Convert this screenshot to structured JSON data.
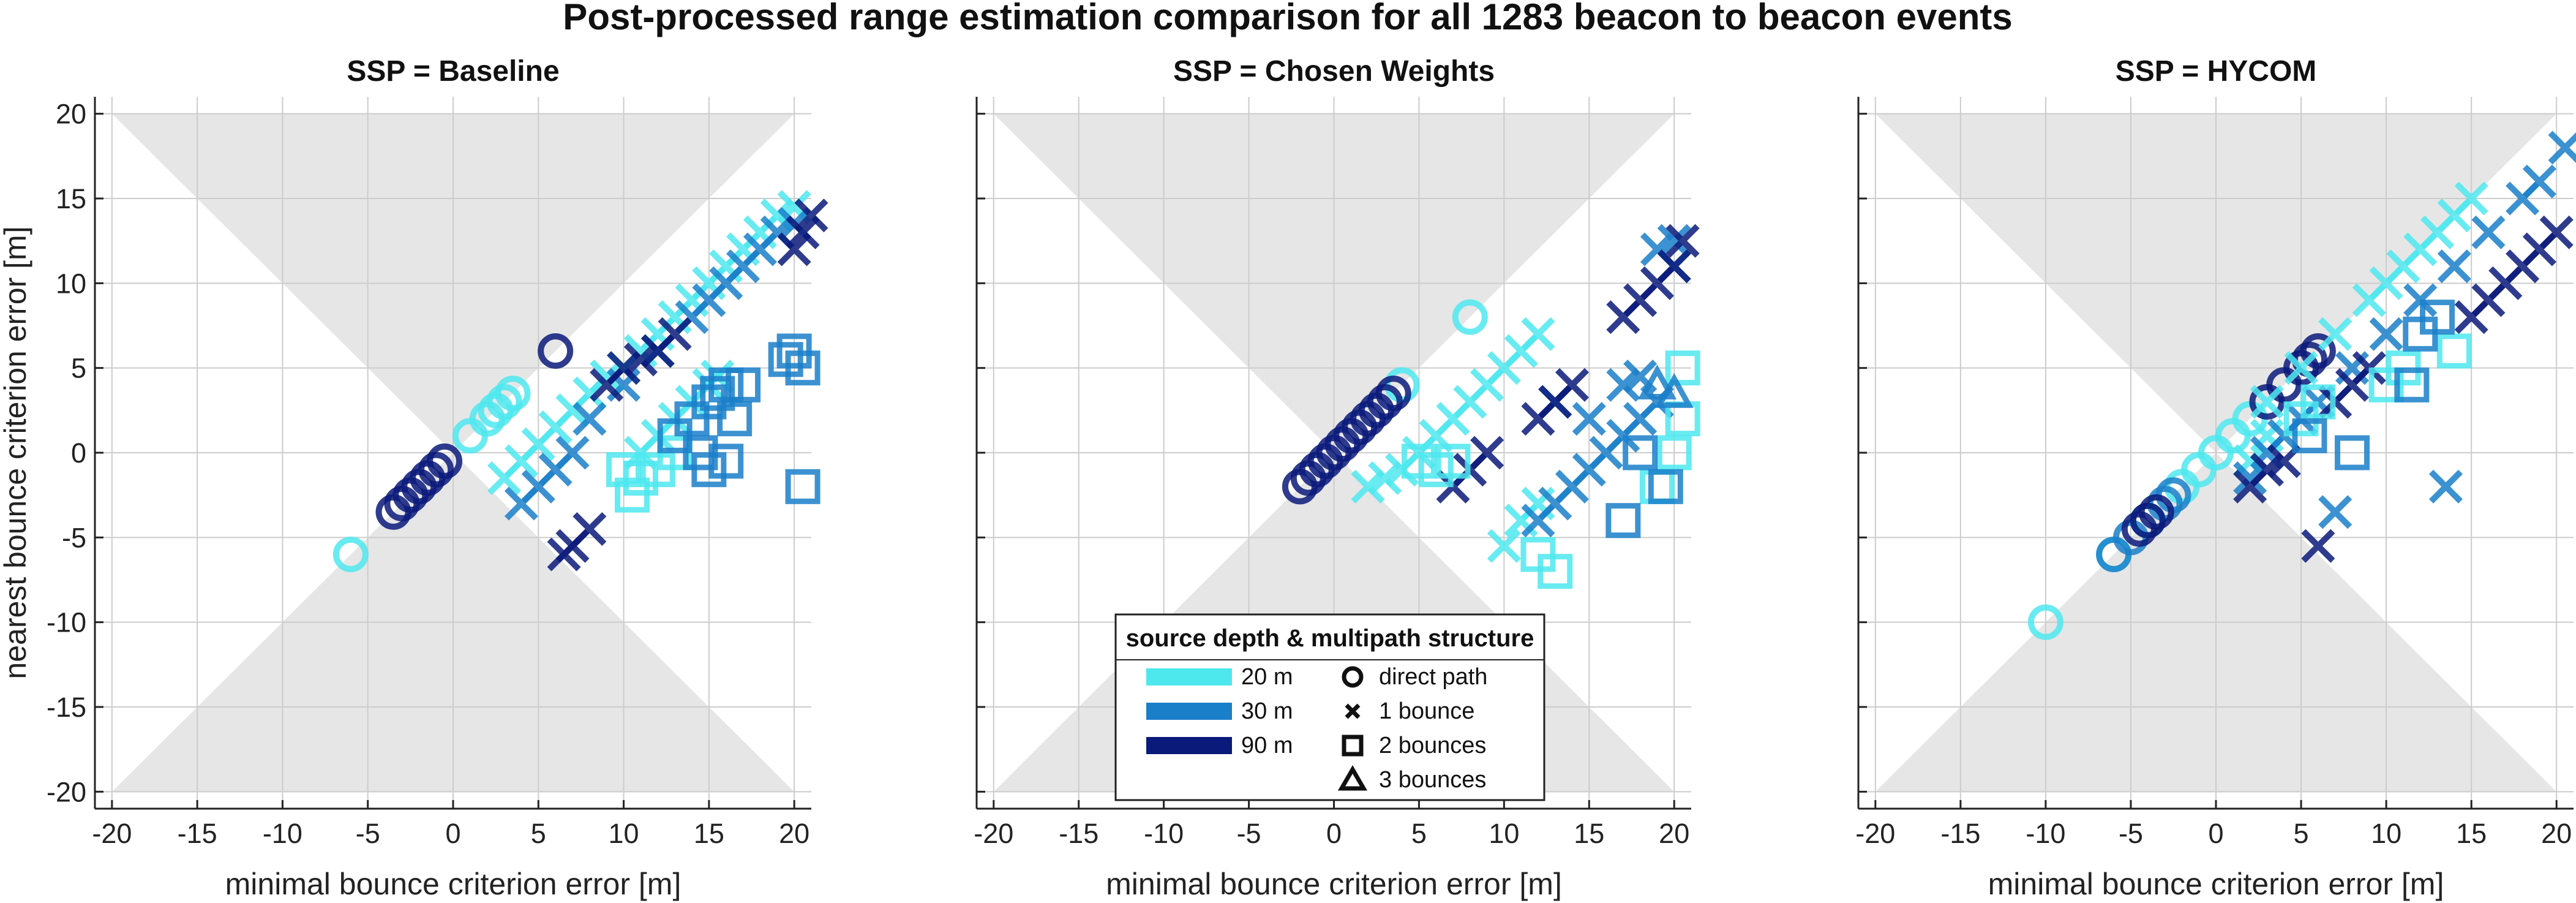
{
  "figure": {
    "title": "Post-processed range estimation comparison for all 1283 beacon to beacon events"
  },
  "colors": {
    "depth_20m": "#4de8ee",
    "depth_30m": "#1a7fc9",
    "depth_90m": "#0a1a7a",
    "shaded_region": "#e6e6e6",
    "grid": "#cccccc"
  },
  "legend": {
    "title": "source depth & multipath structure",
    "depths": [
      {
        "label": "20 m",
        "color": "#4de8ee"
      },
      {
        "label": "30 m",
        "color": "#1a7fc9"
      },
      {
        "label": "90 m",
        "color": "#0a1a7a"
      }
    ],
    "markers": [
      {
        "label": "direct path",
        "icon": "circle-icon"
      },
      {
        "label": "1 bounce",
        "icon": "x-icon"
      },
      {
        "label": "2 bounces",
        "icon": "square-icon"
      },
      {
        "label": "3 bounces",
        "icon": "triangle-icon"
      }
    ]
  },
  "chart_data": [
    {
      "type": "scatter",
      "title": "SSP = Baseline",
      "xlabel": "minimal bounce criterion error [m]",
      "ylabel": "nearest bounce criterion error [m]",
      "xlim": [
        -21,
        21
      ],
      "ylim": [
        -21,
        21
      ],
      "xticks": [
        -20,
        -15,
        -10,
        -5,
        0,
        5,
        10,
        15,
        20
      ],
      "yticks": [
        -20,
        -15,
        -10,
        -5,
        0,
        5,
        10,
        15,
        20
      ],
      "grid": true,
      "series": [
        {
          "depth": "20 m",
          "marker": "circle",
          "points": [
            [
              -6,
              -6
            ],
            [
              1,
              1
            ],
            [
              2,
              2
            ],
            [
              3,
              3
            ],
            [
              3.5,
              3.5
            ],
            [
              2.5,
              2.5
            ]
          ]
        },
        {
          "depth": "90 m",
          "marker": "circle",
          "points": [
            [
              -3.5,
              -3.5
            ],
            [
              -3,
              -3
            ],
            [
              -2.5,
              -2.5
            ],
            [
              -2,
              -2
            ],
            [
              -1.5,
              -1.5
            ],
            [
              -1,
              -1
            ],
            [
              -0.5,
              -0.5
            ],
            [
              6,
              6
            ]
          ]
        },
        {
          "depth": "20 m",
          "marker": "x",
          "points": [
            [
              3,
              -1.5
            ],
            [
              4,
              -0.5
            ],
            [
              5,
              0.5
            ],
            [
              6,
              1.5
            ],
            [
              7,
              2.5
            ],
            [
              8,
              3.5
            ],
            [
              9,
              4.5
            ],
            [
              10,
              5
            ],
            [
              11,
              6
            ],
            [
              12,
              7
            ],
            [
              13,
              8
            ],
            [
              14,
              9
            ],
            [
              15,
              10
            ],
            [
              16,
              11
            ],
            [
              17,
              12
            ],
            [
              18,
              13
            ],
            [
              19,
              14
            ],
            [
              20,
              14.5
            ],
            [
              11,
              0
            ],
            [
              12,
              1
            ],
            [
              13,
              2
            ],
            [
              14,
              3
            ],
            [
              15,
              4
            ],
            [
              15.5,
              4.5
            ]
          ]
        },
        {
          "depth": "30 m",
          "marker": "x",
          "points": [
            [
              4,
              -3
            ],
            [
              5,
              -2
            ],
            [
              6,
              -1
            ],
            [
              7,
              0
            ],
            [
              8,
              2
            ],
            [
              10,
              4
            ],
            [
              12,
              6
            ],
            [
              14,
              8
            ],
            [
              15,
              9
            ],
            [
              16,
              10
            ],
            [
              17,
              11
            ],
            [
              18,
              12
            ],
            [
              19,
              13
            ],
            [
              20,
              13.5
            ]
          ]
        },
        {
          "depth": "90 m",
          "marker": "x",
          "points": [
            [
              7,
              -5.5
            ],
            [
              8,
              -4.5
            ],
            [
              6.5,
              -6
            ],
            [
              9,
              4
            ],
            [
              10,
              5
            ],
            [
              11,
              5.5
            ],
            [
              12,
              6
            ],
            [
              13,
              7
            ],
            [
              20,
              12
            ],
            [
              20.5,
              13
            ],
            [
              21,
              14
            ]
          ]
        },
        {
          "depth": "20 m",
          "marker": "square",
          "points": [
            [
              10,
              -1
            ],
            [
              10.5,
              -2.5
            ],
            [
              12,
              -1
            ],
            [
              13,
              0
            ],
            [
              11,
              -1.5
            ]
          ]
        },
        {
          "depth": "30 m",
          "marker": "square",
          "points": [
            [
              13,
              1
            ],
            [
              14,
              2
            ],
            [
              15,
              3
            ],
            [
              16,
              4
            ],
            [
              17,
              4
            ],
            [
              14.5,
              0
            ],
            [
              15,
              -1
            ],
            [
              16,
              -0.5
            ],
            [
              16.5,
              2
            ],
            [
              15.5,
              3.5
            ],
            [
              19.5,
              5.5
            ],
            [
              20.5,
              5
            ],
            [
              20,
              6
            ],
            [
              20.5,
              -2
            ]
          ]
        }
      ]
    },
    {
      "type": "scatter",
      "title": "SSP = Chosen Weights",
      "xlabel": "minimal bounce criterion error [m]",
      "ylabel": "",
      "xlim": [
        -21,
        21
      ],
      "ylim": [
        -21,
        21
      ],
      "xticks": [
        -20,
        -15,
        -10,
        -5,
        0,
        5,
        10,
        15,
        20
      ],
      "grid": true,
      "series": [
        {
          "depth": "20 m",
          "marker": "circle",
          "points": [
            [
              8,
              8
            ],
            [
              4,
              4
            ]
          ]
        },
        {
          "depth": "90 m",
          "marker": "circle",
          "points": [
            [
              -2,
              -2
            ],
            [
              -1.5,
              -1.5
            ],
            [
              -1,
              -1
            ],
            [
              -0.5,
              -0.5
            ],
            [
              0,
              0
            ],
            [
              0.5,
              0.5
            ],
            [
              1,
              1
            ],
            [
              1.5,
              1.5
            ],
            [
              2,
              2
            ],
            [
              2.5,
              2.5
            ],
            [
              3,
              3
            ],
            [
              3.5,
              3.5
            ]
          ]
        },
        {
          "depth": "20 m",
          "marker": "x",
          "points": [
            [
              2,
              -2
            ],
            [
              3,
              -1.5
            ],
            [
              4,
              -1
            ],
            [
              5,
              0
            ],
            [
              6,
              1
            ],
            [
              7,
              2
            ],
            [
              8,
              3
            ],
            [
              9,
              4
            ],
            [
              10,
              5
            ],
            [
              11,
              6
            ],
            [
              12,
              7
            ],
            [
              10,
              -5.5
            ],
            [
              11,
              -4
            ],
            [
              12,
              -3
            ]
          ]
        },
        {
          "depth": "30 m",
          "marker": "x",
          "points": [
            [
              12,
              -4
            ],
            [
              13,
              -3
            ],
            [
              14,
              -2
            ],
            [
              15,
              -1
            ],
            [
              16,
              0
            ],
            [
              17,
              1
            ],
            [
              18,
              2
            ],
            [
              19,
              3
            ],
            [
              13,
              3
            ],
            [
              15,
              2
            ],
            [
              17,
              4
            ],
            [
              19,
              12
            ],
            [
              20,
              12.5
            ],
            [
              20,
              11
            ],
            [
              18,
              4.5
            ]
          ]
        },
        {
          "depth": "90 m",
          "marker": "x",
          "points": [
            [
              7,
              -2
            ],
            [
              8,
              -1
            ],
            [
              9,
              0
            ],
            [
              12,
              2
            ],
            [
              13,
              3
            ],
            [
              14,
              4
            ],
            [
              17,
              8
            ],
            [
              18,
              9
            ],
            [
              19,
              10
            ],
            [
              20,
              11
            ],
            [
              20.5,
              12.5
            ]
          ]
        },
        {
          "depth": "20 m",
          "marker": "square",
          "points": [
            [
              5,
              -0.5
            ],
            [
              6,
              -1
            ],
            [
              7,
              -0.5
            ],
            [
              12,
              -6
            ],
            [
              13,
              -7
            ],
            [
              19,
              -2
            ],
            [
              20,
              0
            ],
            [
              20.5,
              5
            ],
            [
              20.5,
              2
            ]
          ]
        },
        {
          "depth": "30 m",
          "marker": "square",
          "points": [
            [
              17,
              -4
            ],
            [
              18,
              0
            ],
            [
              19.5,
              -2
            ]
          ]
        },
        {
          "depth": "30 m",
          "marker": "triangle",
          "points": [
            [
              19,
              4
            ],
            [
              20,
              3.5
            ]
          ]
        }
      ]
    },
    {
      "type": "scatter",
      "title": "SSP = HYCOM",
      "xlabel": "minimal bounce criterion error [m]",
      "ylabel": "",
      "xlim": [
        -21,
        21
      ],
      "ylim": [
        -21,
        21
      ],
      "xticks": [
        -20,
        -15,
        -10,
        -5,
        0,
        5,
        10,
        15,
        20
      ],
      "grid": true,
      "series": [
        {
          "depth": "20 m",
          "marker": "circle",
          "points": [
            [
              -10,
              -10
            ],
            [
              -6,
              -6
            ],
            [
              -2,
              -2
            ],
            [
              -1,
              -1
            ],
            [
              0,
              0
            ],
            [
              1,
              1
            ],
            [
              2,
              2
            ]
          ]
        },
        {
          "depth": "30 m",
          "marker": "circle",
          "points": [
            [
              -6,
              -6
            ],
            [
              -5,
              -5
            ],
            [
              -4,
              -4
            ],
            [
              -3,
              -3
            ],
            [
              -2.5,
              -2.5
            ]
          ]
        },
        {
          "depth": "90 m",
          "marker": "circle",
          "points": [
            [
              -4.5,
              -4.5
            ],
            [
              -4,
              -4
            ],
            [
              -3.5,
              -3.5
            ],
            [
              3,
              3
            ],
            [
              4,
              4
            ],
            [
              5,
              5
            ],
            [
              5.5,
              5.5
            ],
            [
              6,
              6
            ]
          ]
        },
        {
          "depth": "20 m",
          "marker": "x",
          "points": [
            [
              3,
              3
            ],
            [
              5,
              5
            ],
            [
              7,
              7
            ],
            [
              9,
              9
            ],
            [
              10,
              10
            ],
            [
              11,
              11
            ],
            [
              12,
              12
            ],
            [
              13,
              13
            ],
            [
              14,
              14
            ],
            [
              15,
              15
            ],
            [
              2,
              -0.5
            ],
            [
              3,
              1
            ]
          ]
        },
        {
          "depth": "30 m",
          "marker": "x",
          "points": [
            [
              2,
              -1.5
            ],
            [
              3,
              0
            ],
            [
              4,
              1
            ],
            [
              5,
              2
            ],
            [
              6,
              3
            ],
            [
              8,
              5
            ],
            [
              10,
              7
            ],
            [
              12,
              9
            ],
            [
              14,
              11
            ],
            [
              16,
              13
            ],
            [
              18,
              15
            ],
            [
              19,
              16
            ],
            [
              20.5,
              18
            ],
            [
              13.5,
              -2
            ],
            [
              7,
              -3.5
            ]
          ]
        },
        {
          "depth": "90 m",
          "marker": "x",
          "points": [
            [
              2,
              -2
            ],
            [
              3,
              -1
            ],
            [
              4,
              -0.5
            ],
            [
              6,
              -5.5
            ],
            [
              7,
              3
            ],
            [
              8,
              4
            ],
            [
              9,
              5
            ],
            [
              15,
              8
            ],
            [
              16,
              9
            ],
            [
              17,
              10
            ],
            [
              18,
              11
            ],
            [
              19,
              12
            ],
            [
              20,
              13
            ]
          ]
        },
        {
          "depth": "20 m",
          "marker": "square",
          "points": [
            [
              5,
              2
            ],
            [
              6,
              3
            ],
            [
              10,
              4
            ],
            [
              11,
              5
            ],
            [
              14,
              6
            ]
          ]
        },
        {
          "depth": "30 m",
          "marker": "square",
          "points": [
            [
              5.5,
              1
            ],
            [
              8,
              0
            ],
            [
              11.5,
              4
            ],
            [
              12,
              7
            ],
            [
              13,
              8
            ]
          ]
        }
      ]
    }
  ]
}
